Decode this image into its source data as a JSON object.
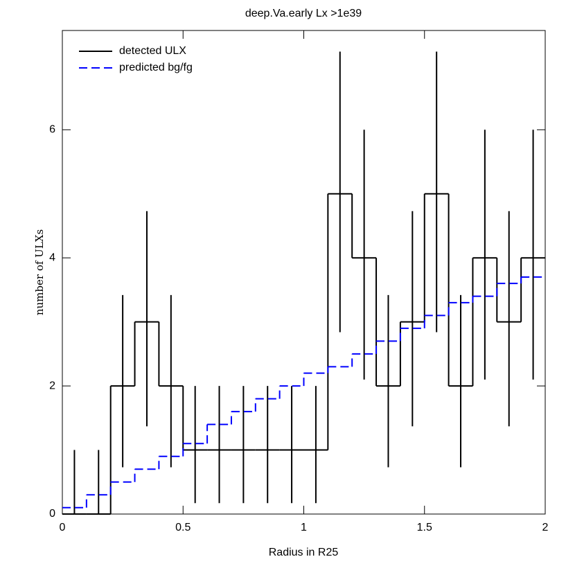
{
  "chart_data": {
    "type": "histogram",
    "title": "deep.Va.early Lx >1e39",
    "xlabel": "Radius in R25",
    "ylabel": "number of ULXs",
    "bins": [
      0,
      0.1,
      0.2,
      0.3,
      0.4,
      0.5,
      0.6,
      0.7,
      0.8,
      0.9,
      1.0,
      1.1,
      1.2,
      1.3,
      1.4,
      1.5,
      1.6,
      1.7,
      1.8,
      1.9,
      2.0
    ],
    "series": [
      {
        "name": "detected ULX",
        "color": "#000000",
        "dash": "none",
        "values": [
          0,
          0,
          2,
          3,
          2,
          1,
          1,
          1,
          1,
          1,
          1,
          5,
          4,
          2,
          3,
          5,
          2,
          4,
          3,
          4
        ],
        "lower": [
          0,
          0,
          0.73,
          1.37,
          0.73,
          0.17,
          0.17,
          0.17,
          0.17,
          0.17,
          0.17,
          2.84,
          2.1,
          0.73,
          1.37,
          2.84,
          0.73,
          2.1,
          1.37,
          2.1
        ],
        "upper": [
          1,
          1,
          3.42,
          4.73,
          3.42,
          2,
          2,
          2,
          2,
          2,
          2,
          7.22,
          6,
          3.42,
          4.73,
          7.22,
          3.42,
          6,
          4.73,
          6
        ]
      },
      {
        "name": "predicted bg/fg",
        "color": "#0000ff",
        "dash": "12,6",
        "values": [
          0.1,
          0.3,
          0.5,
          0.7,
          0.9,
          1.1,
          1.4,
          1.6,
          1.8,
          2.0,
          2.2,
          2.3,
          2.5,
          2.7,
          2.9,
          3.1,
          3.3,
          3.4,
          3.6,
          3.7
        ]
      }
    ],
    "xlim": [
      0,
      2
    ],
    "ylim": [
      0,
      7.55
    ],
    "xticks": [
      0,
      0.5,
      1,
      1.5,
      2
    ],
    "yticks": [
      0,
      2,
      4,
      6
    ],
    "legend": "upper left"
  }
}
